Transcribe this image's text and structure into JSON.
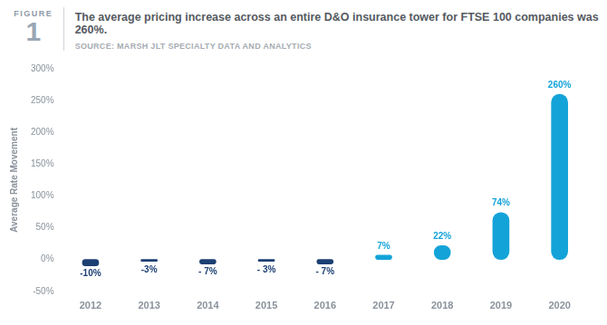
{
  "chart_data": {
    "type": "bar",
    "figure_label": "FIGURE",
    "figure_number": "1",
    "title": "The average pricing increase across an entire D&O insurance tower for FTSE 100 companies was 260%.",
    "subtitle": "SOURCE: MARSH JLT SPECIALTY DATA AND ANALYTICS",
    "y_label": "Average Rate Movement",
    "categories": [
      "2012",
      "2013",
      "2014",
      "2015",
      "2016",
      "2017",
      "2018",
      "2019",
      "2020"
    ],
    "values": [
      -10,
      -3,
      -7,
      -3,
      -7,
      7,
      22,
      74,
      260
    ],
    "value_labels": [
      "-10%",
      "-3%",
      "- 7%",
      "- 3%",
      "- 7%",
      "7%",
      "22%",
      "74%",
      "260%"
    ],
    "colors": [
      "#1c3f73",
      "#1c3f73",
      "#1c3f73",
      "#1c3f73",
      "#1c3f73",
      "#14a3d8",
      "#14a3d8",
      "#14a3d8",
      "#14a3d8"
    ],
    "ylim": [
      -50,
      300
    ],
    "yticks": [
      {
        "value": -50,
        "label": "-50%"
      },
      {
        "value": 0,
        "label": "0%"
      },
      {
        "value": 50,
        "label": "50%"
      },
      {
        "value": 100,
        "label": "100%"
      },
      {
        "value": 150,
        "label": "150%"
      },
      {
        "value": 200,
        "label": "200%"
      },
      {
        "value": 250,
        "label": "250%"
      },
      {
        "value": 300,
        "label": "300%"
      }
    ],
    "grid": false,
    "data_labels": true
  }
}
